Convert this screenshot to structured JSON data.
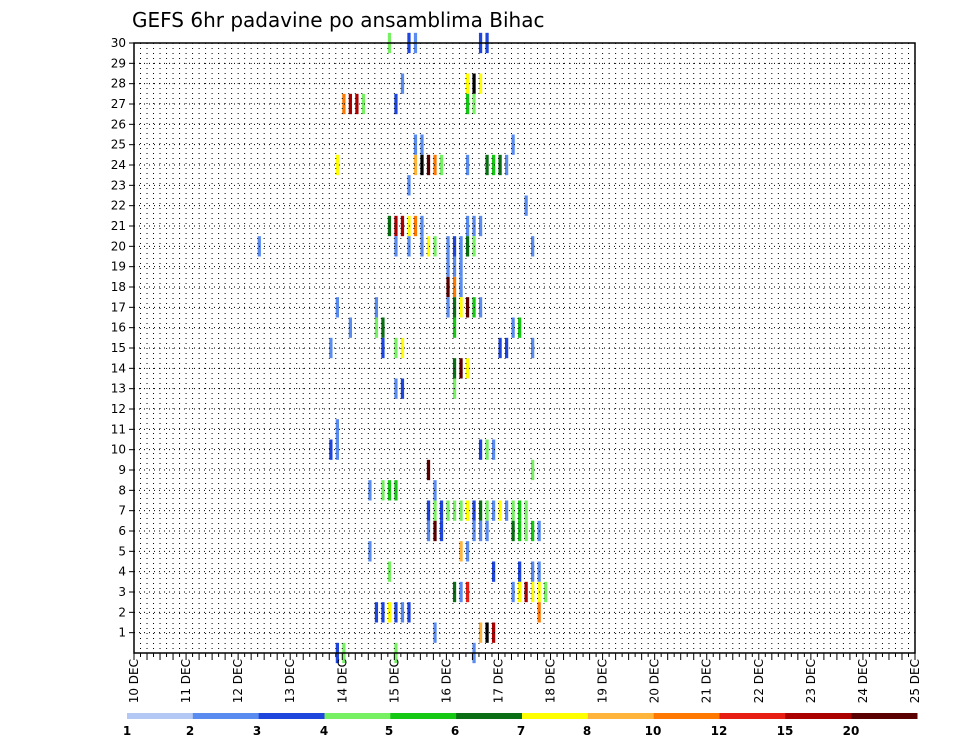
{
  "chart_data": {
    "type": "heatmap",
    "title": "GEFS 6hr padavine po ansamblima Bihac",
    "xlabel": "",
    "ylabel": "",
    "x_tick_labels": [
      "10 DEC",
      "11 DEC",
      "12 DEC",
      "13 DEC",
      "14 DEC",
      "15 DEC",
      "16 DEC",
      "17 DEC",
      "18 DEC",
      "19 DEC",
      "20 DEC",
      "21 DEC",
      "22 DEC",
      "23 DEC",
      "24 DEC",
      "25 DEC"
    ],
    "y_ticks": [
      1,
      2,
      3,
      4,
      5,
      6,
      7,
      8,
      9,
      10,
      11,
      12,
      13,
      14,
      15,
      16,
      17,
      18,
      19,
      20,
      21,
      22,
      23,
      24,
      25,
      26,
      27,
      28,
      29,
      30
    ],
    "xlim": [
      0,
      60
    ],
    "ylim": [
      0,
      30
    ],
    "grid": true,
    "legend_position": "bottom",
    "color_scale": {
      "labels": [
        "1",
        "2",
        "3",
        "4",
        "5",
        "6",
        "7",
        "8",
        "10",
        "12",
        "15",
        "20"
      ],
      "colors": [
        "#b4c8f5",
        "#5a8cf0",
        "#1e46dc",
        "#78f064",
        "#14c814",
        "#0a6e14",
        "#ffff00",
        "#ffb43c",
        "#ff7800",
        "#e61e14",
        "#aa0000",
        "#5a0000"
      ]
    },
    "cells": [
      [
        19.5,
        30,
        3
      ],
      [
        21,
        30,
        2
      ],
      [
        21.5,
        30,
        1
      ],
      [
        26.5,
        30,
        2
      ],
      [
        27,
        30,
        2
      ],
      [
        20.5,
        28,
        1
      ],
      [
        25.5,
        28,
        6
      ],
      [
        26,
        28,
        12
      ],
      [
        26.5,
        28,
        6
      ],
      [
        16,
        27,
        8
      ],
      [
        16.5,
        27,
        10
      ],
      [
        17,
        27,
        10
      ],
      [
        17.5,
        27,
        3
      ],
      [
        20,
        27,
        2
      ],
      [
        25.5,
        27,
        4
      ],
      [
        26,
        27,
        3
      ],
      [
        21.5,
        25,
        1
      ],
      [
        22,
        25,
        1
      ],
      [
        29,
        25,
        1
      ],
      [
        15.5,
        24,
        6
      ],
      [
        21.5,
        24,
        7
      ],
      [
        22,
        24,
        12
      ],
      [
        22.5,
        24,
        11
      ],
      [
        23,
        24,
        8
      ],
      [
        23.5,
        24,
        3
      ],
      [
        25.5,
        24,
        1
      ],
      [
        27,
        24,
        5
      ],
      [
        27.5,
        24,
        4
      ],
      [
        28,
        24,
        5
      ],
      [
        28.5,
        24,
        1
      ],
      [
        21,
        23,
        1
      ],
      [
        30,
        22,
        1
      ],
      [
        19.5,
        21,
        5
      ],
      [
        20,
        21,
        10
      ],
      [
        20.5,
        21,
        10
      ],
      [
        21,
        21,
        6
      ],
      [
        21.5,
        21,
        8
      ],
      [
        22,
        21,
        1
      ],
      [
        25.5,
        21,
        1
      ],
      [
        26,
        21,
        1
      ],
      [
        26.5,
        21,
        1
      ],
      [
        9.5,
        20,
        1
      ],
      [
        20,
        20,
        1
      ],
      [
        21,
        20,
        1
      ],
      [
        22,
        20,
        1
      ],
      [
        22.5,
        20,
        6
      ],
      [
        23,
        20,
        3
      ],
      [
        24,
        20,
        1
      ],
      [
        24.5,
        20,
        2
      ],
      [
        25,
        20,
        1
      ],
      [
        25.5,
        20,
        5
      ],
      [
        26,
        20,
        3
      ],
      [
        30.5,
        20,
        1
      ],
      [
        24,
        19,
        1
      ],
      [
        24.5,
        19,
        1
      ],
      [
        25,
        19,
        1
      ],
      [
        24,
        18,
        11
      ],
      [
        24.5,
        18,
        8
      ],
      [
        25,
        18,
        1
      ],
      [
        15.5,
        17,
        1
      ],
      [
        18.5,
        17,
        1
      ],
      [
        24,
        17,
        1
      ],
      [
        24.5,
        17,
        5
      ],
      [
        25,
        17,
        6
      ],
      [
        25.5,
        17,
        11
      ],
      [
        26,
        17,
        4
      ],
      [
        26.5,
        17,
        1
      ],
      [
        16.5,
        16,
        1
      ],
      [
        18.5,
        16,
        3
      ],
      [
        19,
        16,
        5
      ],
      [
        24.5,
        16,
        4
      ],
      [
        29,
        16,
        1
      ],
      [
        29.5,
        16,
        4
      ],
      [
        15,
        15,
        1
      ],
      [
        19,
        15,
        2
      ],
      [
        20,
        15,
        3
      ],
      [
        20.5,
        15,
        6
      ],
      [
        28,
        15,
        2
      ],
      [
        28.5,
        15,
        2
      ],
      [
        30.5,
        15,
        1
      ],
      [
        24.5,
        14,
        5
      ],
      [
        25,
        14,
        11
      ],
      [
        25.5,
        14,
        6
      ],
      [
        20,
        13,
        1
      ],
      [
        20.5,
        13,
        2
      ],
      [
        24.5,
        13,
        3
      ],
      [
        15.5,
        11,
        1
      ],
      [
        15,
        10,
        2
      ],
      [
        15.5,
        10,
        1
      ],
      [
        26.5,
        10,
        2
      ],
      [
        27,
        10,
        3
      ],
      [
        27.5,
        10,
        1
      ],
      [
        22.5,
        9,
        11
      ],
      [
        30.5,
        9,
        3
      ],
      [
        18,
        8,
        1
      ],
      [
        19,
        8,
        3
      ],
      [
        19.5,
        8,
        4
      ],
      [
        20,
        8,
        4
      ],
      [
        23,
        8,
        1
      ],
      [
        22.5,
        7,
        2
      ],
      [
        23,
        7,
        3
      ],
      [
        23.5,
        7,
        2
      ],
      [
        24,
        7,
        3
      ],
      [
        24.5,
        7,
        3
      ],
      [
        25,
        7,
        3
      ],
      [
        25.5,
        7,
        6
      ],
      [
        26,
        7,
        2
      ],
      [
        26.5,
        7,
        5
      ],
      [
        27,
        7,
        3
      ],
      [
        27.5,
        7,
        1
      ],
      [
        28,
        7,
        6
      ],
      [
        28.5,
        7,
        1
      ],
      [
        29,
        7,
        3
      ],
      [
        29.5,
        7,
        4
      ],
      [
        30,
        7,
        3
      ],
      [
        22.5,
        6,
        1
      ],
      [
        23,
        6,
        11
      ],
      [
        23.5,
        6,
        2
      ],
      [
        26,
        6,
        1
      ],
      [
        26.5,
        6,
        1
      ],
      [
        27,
        6,
        1
      ],
      [
        29,
        6,
        5
      ],
      [
        29.5,
        6,
        4
      ],
      [
        30,
        6,
        3
      ],
      [
        30.5,
        6,
        4
      ],
      [
        31,
        6,
        1
      ],
      [
        18,
        5,
        1
      ],
      [
        25,
        5,
        7
      ],
      [
        25.5,
        5,
        1
      ],
      [
        19.5,
        4,
        3
      ],
      [
        27.5,
        4,
        2
      ],
      [
        29.5,
        4,
        2
      ],
      [
        30.5,
        4,
        1
      ],
      [
        31,
        4,
        1
      ],
      [
        24.5,
        3,
        5
      ],
      [
        25,
        3,
        1
      ],
      [
        25.5,
        3,
        9
      ],
      [
        29,
        3,
        1
      ],
      [
        29.5,
        3,
        6
      ],
      [
        30,
        3,
        10
      ],
      [
        30.5,
        3,
        6
      ],
      [
        31,
        3,
        6
      ],
      [
        31.5,
        3,
        3
      ],
      [
        18.5,
        2,
        2
      ],
      [
        19,
        2,
        2
      ],
      [
        19.5,
        2,
        6
      ],
      [
        20,
        2,
        2
      ],
      [
        20.5,
        2,
        1
      ],
      [
        21,
        2,
        2
      ],
      [
        31,
        2,
        8
      ],
      [
        23,
        1,
        1
      ],
      [
        26.5,
        1,
        7
      ],
      [
        27,
        1,
        12
      ],
      [
        27.5,
        1,
        10
      ],
      [
        15.5,
        0,
        2
      ],
      [
        16,
        0,
        3
      ],
      [
        20,
        0,
        3
      ],
      [
        26,
        0,
        1
      ]
    ]
  }
}
